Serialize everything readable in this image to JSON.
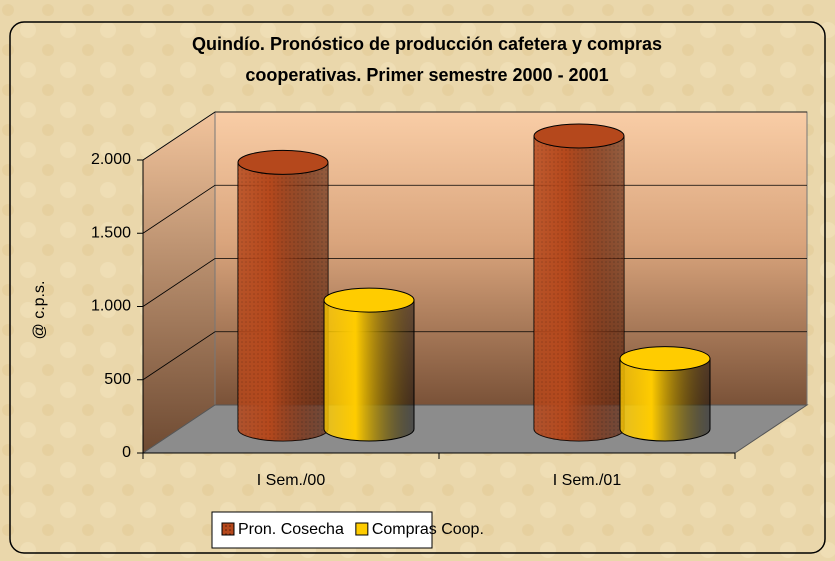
{
  "chart_data": {
    "type": "bar3d",
    "title": "Quindío. Pronóstico de producción cafetera y compras cooperativas. Primer semestre 2000 - 2001",
    "title_lines": [
      "Quindío. Pronóstico de producción cafetera y compras",
      "cooperativas. Primer semestre 2000 - 2001"
    ],
    "y_label": "@ c.p.s.",
    "categories": [
      "I Sem./00",
      "I Sem./01"
    ],
    "series": [
      {
        "name": "Pron. Cosecha",
        "color": "#b5481c",
        "values": [
          1820,
          2000
        ]
      },
      {
        "name": "Compras Coop.",
        "color": "#ffcc00",
        "values": [
          880,
          480
        ]
      }
    ],
    "ylim": [
      0,
      2000
    ],
    "yticks": [
      0,
      500,
      {
        "value": 1000,
        "label": "1.000"
      },
      {
        "value": 1500,
        "label": "1.500"
      },
      {
        "value": 2000,
        "label": "2.000"
      }
    ],
    "grid": true,
    "legend": "bottom"
  }
}
